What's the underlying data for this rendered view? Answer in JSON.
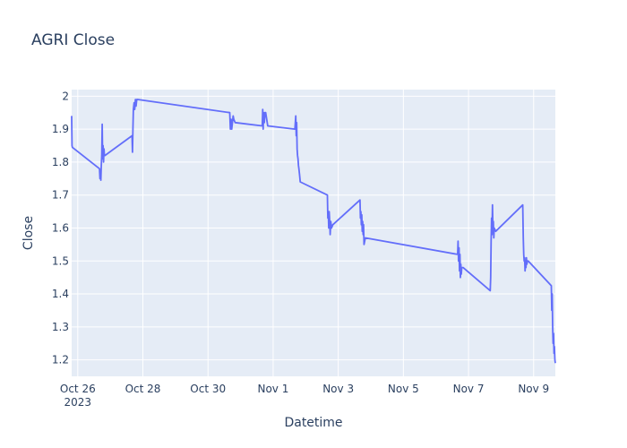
{
  "chart_data": {
    "type": "line",
    "title": "AGRI Close",
    "xlabel": "Datetime",
    "ylabel": "Close",
    "x_range": [
      "2023-10-25T19:30:00",
      "2023-11-09T16:00:00"
    ],
    "ylim": [
      1.15,
      2.02
    ],
    "x_ticks": [
      {
        "date": "2023-10-26",
        "label": "Oct 26",
        "sublabel": "2023"
      },
      {
        "date": "2023-10-28",
        "label": "Oct 28",
        "sublabel": ""
      },
      {
        "date": "2023-10-30",
        "label": "Oct 30",
        "sublabel": ""
      },
      {
        "date": "2023-11-01",
        "label": "Nov 1",
        "sublabel": ""
      },
      {
        "date": "2023-11-03",
        "label": "Nov 3",
        "sublabel": ""
      },
      {
        "date": "2023-11-05",
        "label": "Nov 5",
        "sublabel": ""
      },
      {
        "date": "2023-11-07",
        "label": "Nov 7",
        "sublabel": ""
      },
      {
        "date": "2023-11-09",
        "label": "Nov 9",
        "sublabel": ""
      }
    ],
    "y_ticks": [
      1.2,
      1.3,
      1.4,
      1.5,
      1.6,
      1.7,
      1.8,
      1.9,
      2
    ],
    "grid": true,
    "line_color": "#636efa",
    "plot_bg": "#e5ecf6",
    "series": [
      {
        "x": [
          "2023-10-25T19:30:00",
          "2023-10-25T19:45:00",
          "2023-10-25T20:00:00",
          "2023-10-26T16:00:00",
          "2023-10-26T16:20:00",
          "2023-10-26T16:40:00",
          "2023-10-26T17:00:00",
          "2023-10-26T17:20:00",
          "2023-10-26T17:40:00",
          "2023-10-26T18:00:00",
          "2023-10-26T18:20:00",
          "2023-10-26T18:40:00",
          "2023-10-26T19:00:00",
          "2023-10-26T19:20:00",
          "2023-10-26T19:40:00",
          "2023-10-26T20:00:00",
          "2023-10-27T16:00:00",
          "2023-10-27T16:20:00",
          "2023-10-27T16:40:00",
          "2023-10-27T17:00:00",
          "2023-10-27T17:30:00",
          "2023-10-27T18:00:00",
          "2023-10-27T18:30:00",
          "2023-10-27T19:00:00",
          "2023-10-27T19:30:00",
          "2023-10-27T20:00:00",
          "2023-10-30T16:00:00",
          "2023-10-30T16:30:00",
          "2023-10-30T17:00:00",
          "2023-10-30T17:30:00",
          "2023-10-30T18:00:00",
          "2023-10-30T18:30:00",
          "2023-10-30T19:00:00",
          "2023-10-30T20:00:00",
          "2023-10-31T16:00:00",
          "2023-10-31T16:20:00",
          "2023-10-31T16:40:00",
          "2023-10-31T17:00:00",
          "2023-10-31T17:30:00",
          "2023-10-31T18:00:00",
          "2023-10-31T18:30:00",
          "2023-10-31T20:00:00",
          "2023-11-01T16:00:00",
          "2023-11-01T16:20:00",
          "2023-11-01T16:40:00",
          "2023-11-01T17:00:00",
          "2023-11-01T17:20:00",
          "2023-11-01T17:40:00",
          "2023-11-01T18:00:00",
          "2023-11-01T18:20:00",
          "2023-11-01T18:40:00",
          "2023-11-01T19:00:00",
          "2023-11-01T19:30:00",
          "2023-11-01T20:00:00",
          "2023-11-02T16:00:00",
          "2023-11-02T16:20:00",
          "2023-11-02T16:40:00",
          "2023-11-02T17:00:00",
          "2023-11-02T17:20:00",
          "2023-11-02T17:40:00",
          "2023-11-02T18:00:00",
          "2023-11-02T18:30:00",
          "2023-11-02T19:00:00",
          "2023-11-02T20:00:00",
          "2023-11-03T16:00:00",
          "2023-11-03T16:20:00",
          "2023-11-03T16:40:00",
          "2023-11-03T17:00:00",
          "2023-11-03T17:20:00",
          "2023-11-03T17:40:00",
          "2023-11-03T18:00:00",
          "2023-11-03T18:20:00",
          "2023-11-03T18:40:00",
          "2023-11-03T19:00:00",
          "2023-11-03T20:00:00",
          "2023-11-06T16:00:00",
          "2023-11-06T16:20:00",
          "2023-11-06T16:40:00",
          "2023-11-06T17:00:00",
          "2023-11-06T17:20:00",
          "2023-11-06T17:40:00",
          "2023-11-06T18:00:00",
          "2023-11-06T18:20:00",
          "2023-11-06T18:40:00",
          "2023-11-06T19:00:00",
          "2023-11-06T20:00:00",
          "2023-11-07T16:00:00",
          "2023-11-07T16:20:00",
          "2023-11-07T16:40:00",
          "2023-11-07T17:00:00",
          "2023-11-07T17:20:00",
          "2023-11-07T17:40:00",
          "2023-11-07T18:00:00",
          "2023-11-07T18:20:00",
          "2023-11-07T18:40:00",
          "2023-11-07T19:00:00",
          "2023-11-07T20:00:00",
          "2023-11-08T16:00:00",
          "2023-11-08T16:20:00",
          "2023-11-08T16:40:00",
          "2023-11-08T17:00:00",
          "2023-11-08T17:20:00",
          "2023-11-08T17:40:00",
          "2023-11-08T18:00:00",
          "2023-11-08T18:20:00",
          "2023-11-08T18:40:00",
          "2023-11-08T19:00:00",
          "2023-11-08T19:30:00",
          "2023-11-08T20:00:00",
          "2023-11-09T13:00:00",
          "2023-11-09T13:20:00",
          "2023-11-09T13:40:00",
          "2023-11-09T14:00:00",
          "2023-11-09T14:20:00",
          "2023-11-09T14:40:00",
          "2023-11-09T15:00:00",
          "2023-11-09T15:20:00",
          "2023-11-09T15:40:00",
          "2023-11-09T16:00:00"
        ],
        "y": [
          1.94,
          1.85,
          1.845,
          1.78,
          1.75,
          1.77,
          1.745,
          1.79,
          1.82,
          1.915,
          1.81,
          1.85,
          1.8,
          1.84,
          1.82,
          1.82,
          1.88,
          1.83,
          1.9,
          1.96,
          1.98,
          1.96,
          1.99,
          1.97,
          1.99,
          1.99,
          1.95,
          1.9,
          1.93,
          1.9,
          1.92,
          1.94,
          1.93,
          1.92,
          1.91,
          1.96,
          1.9,
          1.95,
          1.92,
          1.95,
          1.95,
          1.91,
          1.9,
          1.92,
          1.94,
          1.88,
          1.92,
          1.84,
          1.82,
          1.81,
          1.79,
          1.78,
          1.76,
          1.74,
          1.7,
          1.63,
          1.65,
          1.6,
          1.65,
          1.62,
          1.58,
          1.62,
          1.6,
          1.61,
          1.685,
          1.63,
          1.65,
          1.61,
          1.64,
          1.59,
          1.62,
          1.58,
          1.61,
          1.55,
          1.57,
          1.52,
          1.56,
          1.5,
          1.54,
          1.47,
          1.52,
          1.45,
          1.49,
          1.46,
          1.48,
          1.48,
          1.41,
          1.45,
          1.56,
          1.63,
          1.58,
          1.67,
          1.6,
          1.62,
          1.57,
          1.6,
          1.59,
          1.67,
          1.57,
          1.52,
          1.5,
          1.51,
          1.47,
          1.5,
          1.48,
          1.51,
          1.49,
          1.5,
          1.5,
          1.425,
          1.35,
          1.4,
          1.3,
          1.25,
          1.28,
          1.22,
          1.24,
          1.2,
          1.19
        ]
      }
    ]
  }
}
